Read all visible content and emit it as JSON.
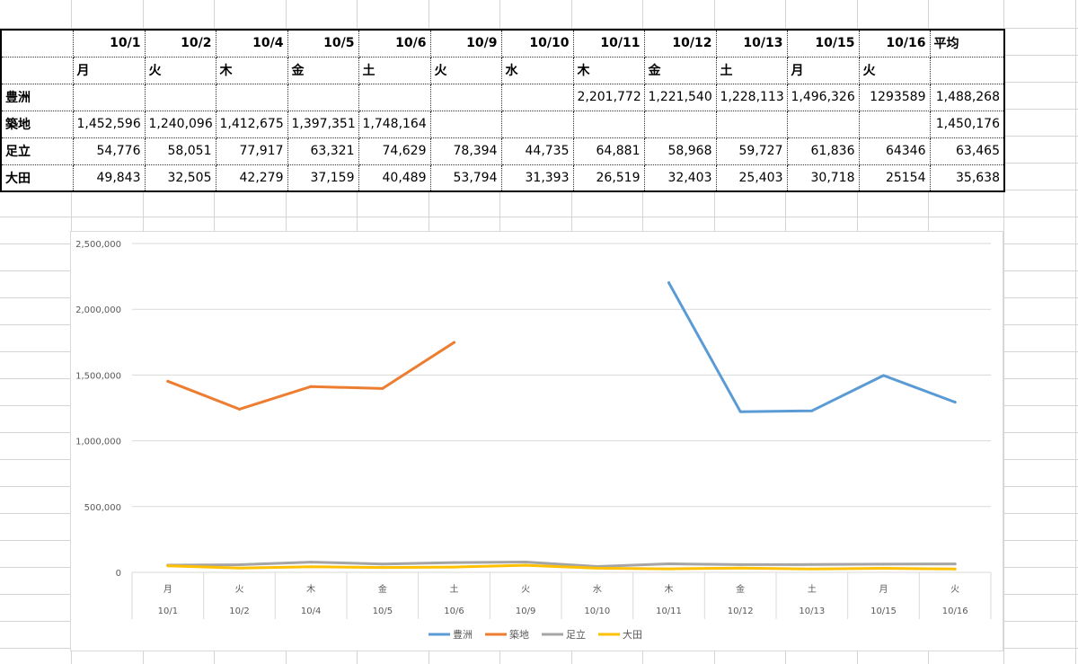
{
  "table": {
    "dates": [
      "10/1",
      "10/2",
      "10/4",
      "10/5",
      "10/6",
      "10/9",
      "10/10",
      "10/11",
      "10/12",
      "10/13",
      "10/15",
      "10/16"
    ],
    "days": [
      "月",
      "火",
      "木",
      "金",
      "土",
      "火",
      "水",
      "木",
      "金",
      "土",
      "月",
      "火"
    ],
    "avg_label": "平均",
    "rows": [
      {
        "label": "豊洲",
        "cells": [
          "",
          "",
          "",
          "",
          "",
          "",
          "",
          "2,201,772",
          "1,221,540",
          "1,228,113",
          "1,496,326",
          "1293589"
        ],
        "avg": "1,488,268"
      },
      {
        "label": "築地",
        "cells": [
          "1,452,596",
          "1,240,096",
          "1,412,675",
          "1,397,351",
          "1,748,164",
          "",
          "",
          "",
          "",
          "",
          "",
          ""
        ],
        "avg": "1,450,176"
      },
      {
        "label": "足立",
        "cells": [
          "54,776",
          "58,051",
          "77,917",
          "63,321",
          "74,629",
          "78,394",
          "44,735",
          "64,881",
          "58,968",
          "59,727",
          "61,836",
          "64346"
        ],
        "avg": "63,465"
      },
      {
        "label": "大田",
        "cells": [
          "49,843",
          "32,505",
          "42,279",
          "37,159",
          "40,489",
          "53,794",
          "31,393",
          "26,519",
          "32,403",
          "25,403",
          "30,718",
          "25154"
        ],
        "avg": "35,638"
      }
    ]
  },
  "chart_data": {
    "type": "line",
    "categories": [
      "10/1",
      "10/2",
      "10/4",
      "10/5",
      "10/6",
      "10/9",
      "10/10",
      "10/11",
      "10/12",
      "10/13",
      "10/15",
      "10/16"
    ],
    "category_days": [
      "月",
      "火",
      "木",
      "金",
      "土",
      "火",
      "水",
      "木",
      "金",
      "土",
      "月",
      "火"
    ],
    "y_ticks": [
      "0",
      "500,000",
      "1,000,000",
      "1,500,000",
      "2,000,000",
      "2,500,000"
    ],
    "ylim": [
      0,
      2500000
    ],
    "grid": true,
    "legend_position": "bottom",
    "series": [
      {
        "name": "豊洲",
        "color": "#5b9bd5",
        "values": [
          null,
          null,
          null,
          null,
          null,
          null,
          null,
          2201772,
          1221540,
          1228113,
          1496326,
          1293589
        ]
      },
      {
        "name": "築地",
        "color": "#ed7d31",
        "values": [
          1452596,
          1240096,
          1412675,
          1397351,
          1748164,
          null,
          null,
          null,
          null,
          null,
          null,
          null
        ]
      },
      {
        "name": "足立",
        "color": "#a5a5a5",
        "values": [
          54776,
          58051,
          77917,
          63321,
          74629,
          78394,
          44735,
          64881,
          58968,
          59727,
          61836,
          64346
        ]
      },
      {
        "name": "大田",
        "color": "#ffc000",
        "values": [
          49843,
          32505,
          42279,
          37159,
          40489,
          53794,
          31393,
          26519,
          32403,
          25403,
          30718,
          25154
        ]
      }
    ]
  }
}
